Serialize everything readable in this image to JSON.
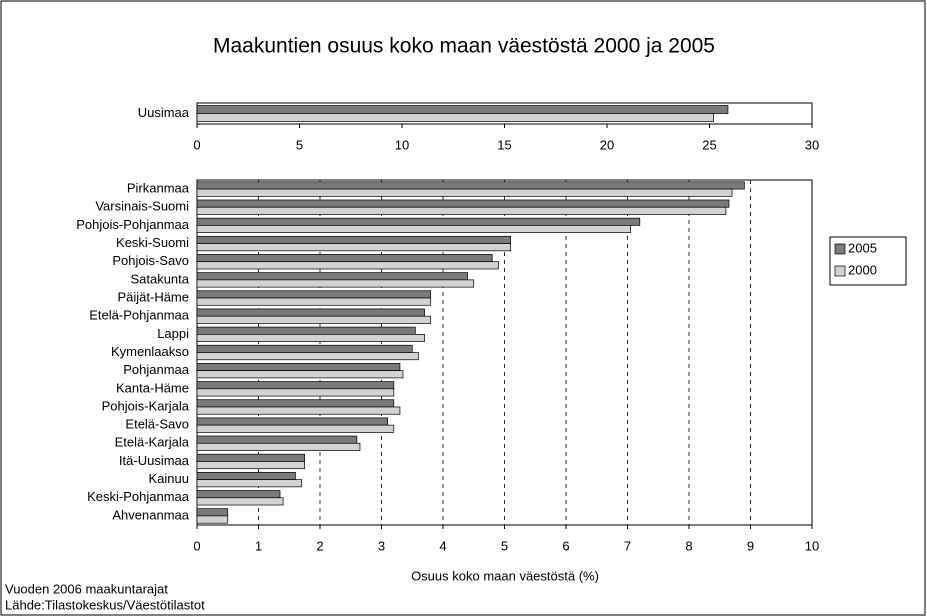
{
  "chart_data": [
    {
      "type": "bar",
      "orientation": "horizontal",
      "title": "Maakuntien osuus koko maan väestöstä 2000 ja 2005",
      "categories": [
        "Uusimaa"
      ],
      "series": [
        {
          "name": "2005",
          "color": "#7a7a7a",
          "values": [
            25.9
          ]
        },
        {
          "name": "2000",
          "color": "#d2d2d2",
          "values": [
            25.2
          ]
        }
      ],
      "xlim": [
        0,
        30
      ],
      "xticks": [
        0,
        5,
        10,
        15,
        20,
        25,
        30
      ],
      "grid": false
    },
    {
      "type": "bar",
      "orientation": "horizontal",
      "xlabel": "Osuus koko maan väestöstä (%)",
      "categories": [
        "Pirkanmaa",
        "Varsinais-Suomi",
        "Pohjois-Pohjanmaa",
        "Keski-Suomi",
        "Pohjois-Savo",
        "Satakunta",
        "Päijät-Häme",
        "Etelä-Pohjanmaa",
        "Lappi",
        "Kymenlaakso",
        "Pohjanmaa",
        "Kanta-Häme",
        "Pohjois-Karjala",
        "Etelä-Savo",
        "Etelä-Karjala",
        "Itä-Uusimaa",
        "Kainuu",
        "Keski-Pohjanmaa",
        "Ahvenanmaa"
      ],
      "series": [
        {
          "name": "2005",
          "color": "#7a7a7a",
          "values": [
            8.9,
            8.65,
            7.2,
            5.1,
            4.8,
            4.4,
            3.8,
            3.7,
            3.55,
            3.5,
            3.3,
            3.2,
            3.2,
            3.1,
            2.6,
            1.75,
            1.6,
            1.35,
            0.5
          ]
        },
        {
          "name": "2000",
          "color": "#d2d2d2",
          "values": [
            8.7,
            8.6,
            7.05,
            5.1,
            4.9,
            4.5,
            3.8,
            3.8,
            3.7,
            3.6,
            3.35,
            3.2,
            3.3,
            3.2,
            2.65,
            1.75,
            1.7,
            1.4,
            0.5
          ]
        }
      ],
      "xlim": [
        0,
        10
      ],
      "xticks": [
        0,
        1,
        2,
        3,
        4,
        5,
        6,
        7,
        8,
        9,
        10
      ],
      "grid": true,
      "legend": "right",
      "notes": [
        "Vuoden 2006 maakuntarajat",
        "Lähde:Tilastokeskus/Väestötilastot"
      ]
    }
  ]
}
